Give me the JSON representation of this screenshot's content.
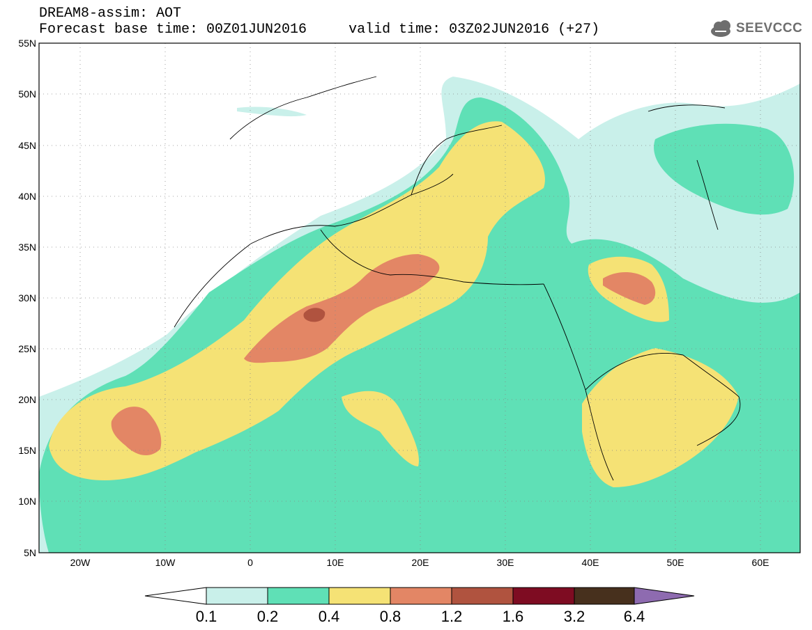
{
  "header": {
    "title_line1": "DREAM8-assim: AOT",
    "title_line2": "Forecast base time: 00Z01JUN2016     valid time: 03Z02JUN2016 (+27)",
    "logo_text": "SEEVCCC"
  },
  "map": {
    "lat_labels": [
      "55N",
      "50N",
      "45N",
      "40N",
      "35N",
      "30N",
      "25N",
      "20N",
      "15N",
      "10N",
      "5N"
    ],
    "lon_labels": [
      "20W",
      "10W",
      "0",
      "10E",
      "20E",
      "30E",
      "40E",
      "50E",
      "60E"
    ],
    "region": "North Africa, Europe and Middle East"
  },
  "colorbar": {
    "labels": [
      "0.1",
      "0.2",
      "0.4",
      "0.8",
      "1.2",
      "1.6",
      "3.2",
      "6.4"
    ],
    "colors": [
      "#ffffff",
      "#c9f0ea",
      "#5fe0b6",
      "#f5e275",
      "#e38665",
      "#b0533f",
      "#7e0c22",
      "#47301d",
      "#8e6bb0"
    ]
  },
  "colors": {
    "level_01": "#c9f0ea",
    "level_02": "#5fe0b6",
    "level_04": "#f5e275",
    "level_08": "#e38665",
    "level_12": "#b0533f",
    "level_16": "#7e0c22"
  }
}
